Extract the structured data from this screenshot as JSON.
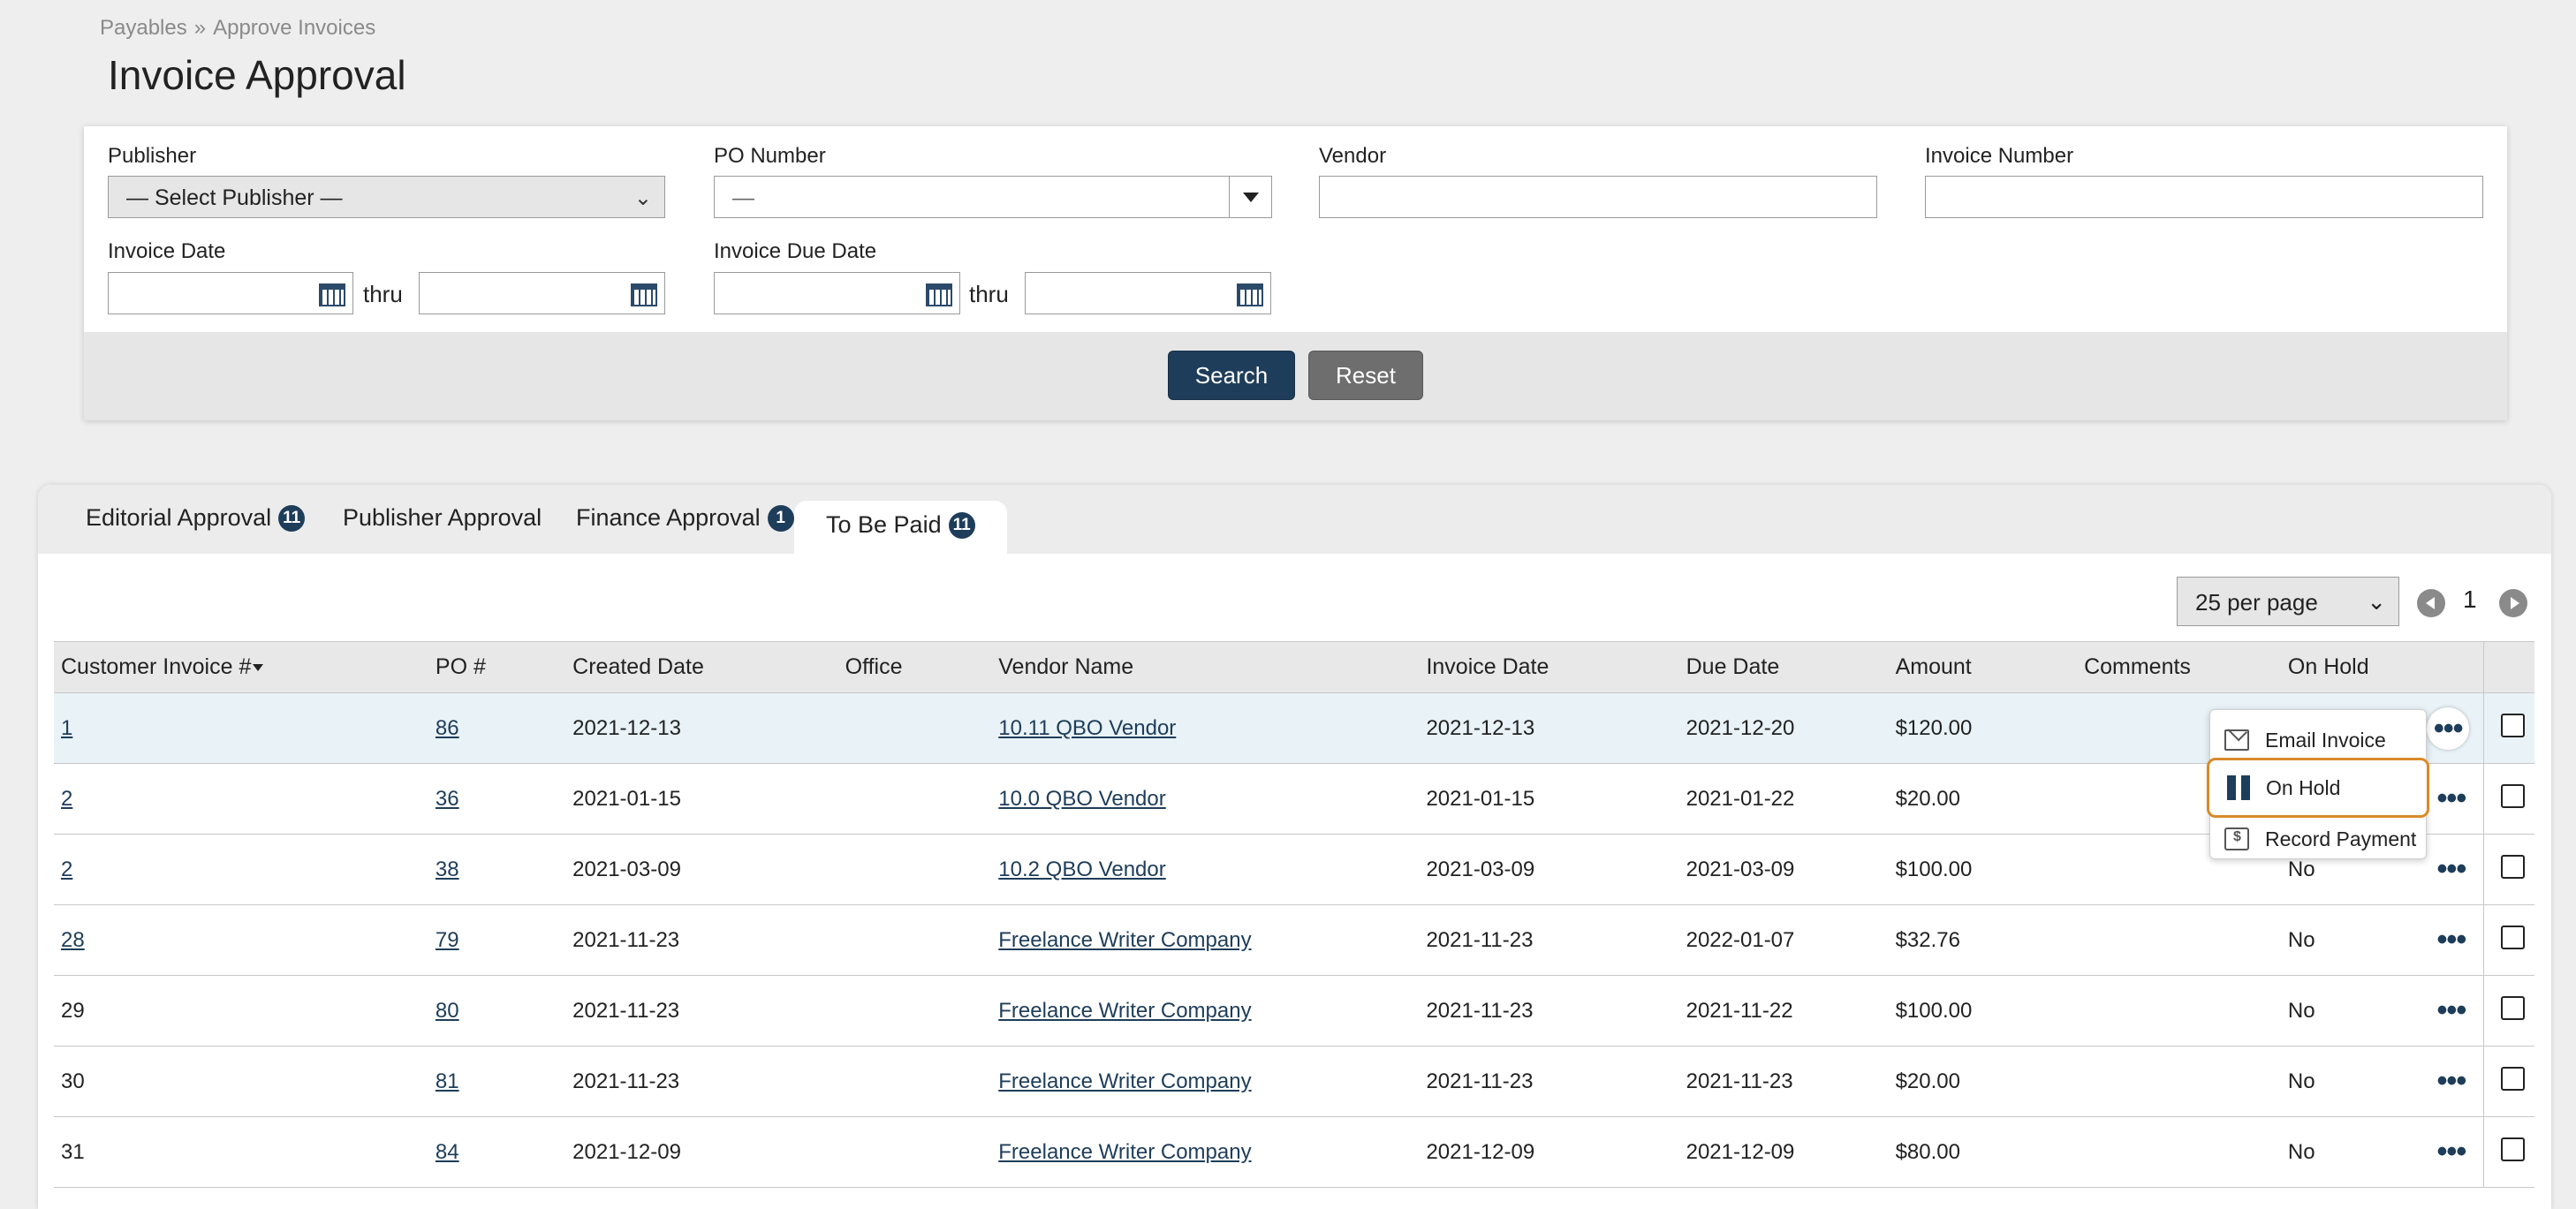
{
  "breadcrumb": {
    "root": "Payables",
    "separator": "»",
    "current": "Approve Invoices"
  },
  "page_title": "Invoice Approval",
  "filters": {
    "publisher_label": "Publisher",
    "publisher_value": "— Select Publisher —",
    "po_label": "PO Number",
    "po_value": "—",
    "vendor_label": "Vendor",
    "vendor_value": "",
    "invoice_number_label": "Invoice Number",
    "invoice_number_value": "",
    "invoice_date_label": "Invoice Date",
    "invoice_due_date_label": "Invoice Due Date",
    "thru": "thru",
    "search_button": "Search",
    "reset_button": "Reset"
  },
  "tabs": [
    {
      "label": "Editorial Approval",
      "badge": "11"
    },
    {
      "label": "Publisher Approval",
      "badge": ""
    },
    {
      "label": "Finance Approval",
      "badge": "1"
    },
    {
      "label": "To Be Paid",
      "badge": "11",
      "active": true
    }
  ],
  "pagination": {
    "per_page": "25 per page",
    "page": "1"
  },
  "table": {
    "headers": [
      "Customer Invoice #",
      "PO #",
      "Created Date",
      "Office",
      "Vendor Name",
      "Invoice Date",
      "Due Date",
      "Amount",
      "Comments",
      "On Hold"
    ],
    "rows": [
      {
        "invoice": "1",
        "po": "86",
        "created": "2021-12-13",
        "office": "",
        "vendor": "10.11 QBO Vendor",
        "invoice_date": "2021-12-13",
        "due": "2021-12-20",
        "amount": "$120.00",
        "comments": "",
        "on_hold": ""
      },
      {
        "invoice": "2",
        "po": "36",
        "created": "2021-01-15",
        "office": "",
        "vendor": "10.0 QBO Vendor",
        "invoice_date": "2021-01-15",
        "due": "2021-01-22",
        "amount": "$20.00",
        "comments": "",
        "on_hold": ""
      },
      {
        "invoice": "2",
        "po": "38",
        "created": "2021-03-09",
        "office": "",
        "vendor": "10.2 QBO Vendor",
        "invoice_date": "2021-03-09",
        "due": "2021-03-09",
        "amount": "$100.00",
        "comments": "",
        "on_hold": "No"
      },
      {
        "invoice": "28",
        "po": "79",
        "created": "2021-11-23",
        "office": "",
        "vendor": "Freelance Writer Company",
        "invoice_date": "2021-11-23",
        "due": "2022-01-07",
        "amount": "$32.76",
        "comments": "",
        "on_hold": "No"
      },
      {
        "invoice": "29",
        "po": "80",
        "created": "2021-11-23",
        "office": "",
        "vendor": "Freelance Writer Company",
        "invoice_date": "2021-11-23",
        "due": "2021-11-22",
        "amount": "$100.00",
        "comments": "",
        "on_hold": "No"
      },
      {
        "invoice": "30",
        "po": "81",
        "created": "2021-11-23",
        "office": "",
        "vendor": "Freelance Writer Company",
        "invoice_date": "2021-11-23",
        "due": "2021-11-23",
        "amount": "$20.00",
        "comments": "",
        "on_hold": "No"
      },
      {
        "invoice": "31",
        "po": "84",
        "created": "2021-12-09",
        "office": "",
        "vendor": "Freelance Writer Company",
        "invoice_date": "2021-12-09",
        "due": "2021-12-09",
        "amount": "$80.00",
        "comments": "",
        "on_hold": "No"
      }
    ]
  },
  "context_menu": {
    "items": [
      {
        "label": "Email Invoice",
        "icon": "email-icon"
      },
      {
        "label": "On Hold",
        "icon": "pause-icon"
      },
      {
        "label": "Record Payment",
        "icon": "payment-icon"
      }
    ]
  },
  "colors": {
    "primary": "#1e3d5a",
    "focus_ring": "#d98a2a",
    "reset": "#6e6e6e",
    "row_highlight": "#e8f2f7"
  }
}
